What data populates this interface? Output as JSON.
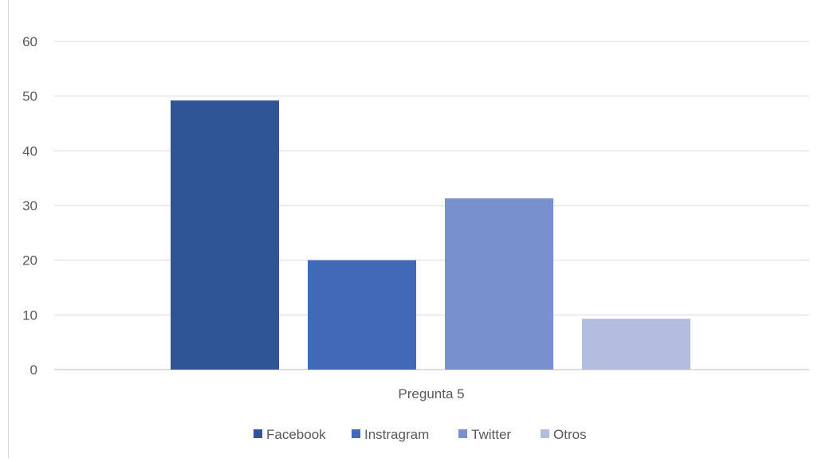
{
  "chart_data": {
    "type": "bar",
    "categories": [
      "Pregunta 5"
    ],
    "series": [
      {
        "name": "Facebook",
        "values": [
          49.2
        ],
        "color": "#2f5597"
      },
      {
        "name": "Instragram",
        "values": [
          20
        ],
        "color": "#4169b8"
      },
      {
        "name": "Twitter",
        "values": [
          31.3
        ],
        "color": "#7990cf"
      },
      {
        "name": "Otros",
        "values": [
          9.3
        ],
        "color": "#b2bde0"
      }
    ],
    "yticks": [
      "0",
      "10",
      "20",
      "30",
      "40",
      "50",
      "60"
    ],
    "ylim": [
      0,
      60
    ],
    "grid": true,
    "legend_position": "bottom"
  }
}
